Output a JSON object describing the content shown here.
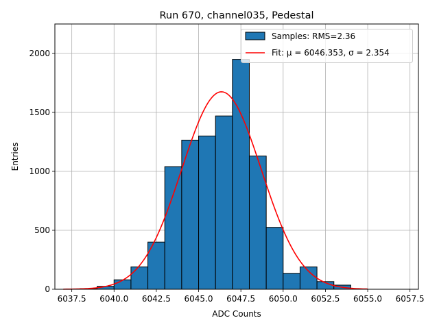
{
  "chart_data": {
    "type": "bar",
    "title": "Run 670, channel035, Pedestal",
    "xlabel": "ADC Counts",
    "ylabel": "Entries",
    "xlim": [
      6036.5,
      6058.0
    ],
    "ylim": [
      0,
      2250
    ],
    "xticks": [
      6037.5,
      6040.0,
      6042.5,
      6045.0,
      6047.5,
      6050.0,
      6052.5,
      6055.0,
      6057.5
    ],
    "xtick_labels": [
      "6037.5",
      "6040.0",
      "6042.5",
      "6045.0",
      "6047.5",
      "6050.0",
      "6052.5",
      "6055.0",
      "6057.5"
    ],
    "yticks": [
      0,
      500,
      1000,
      1500,
      2000
    ],
    "ytick_labels": [
      "0",
      "500",
      "1000",
      "1500",
      "2000"
    ],
    "grid": true,
    "legend_position": "top-right",
    "histogram": {
      "name": "Samples: RMS=2.36",
      "color": "#1f77b4",
      "edgecolor": "#000000",
      "bins": [
        {
          "x0": 6037,
          "x1": 6038,
          "count": 0
        },
        {
          "x0": 6038,
          "x1": 6039,
          "count": 5
        },
        {
          "x0": 6039,
          "x1": 6040,
          "count": 25
        },
        {
          "x0": 6040,
          "x1": 6041,
          "count": 80
        },
        {
          "x0": 6041,
          "x1": 6042,
          "count": 190
        },
        {
          "x0": 6042,
          "x1": 6043,
          "count": 400
        },
        {
          "x0": 6043,
          "x1": 6044,
          "count": 1040
        },
        {
          "x0": 6044,
          "x1": 6045,
          "count": 1265
        },
        {
          "x0": 6045,
          "x1": 6046,
          "count": 1300
        },
        {
          "x0": 6046,
          "x1": 6047,
          "count": 1470
        },
        {
          "x0": 6047,
          "x1": 6048,
          "count": 1950
        },
        {
          "x0": 6048,
          "x1": 6049,
          "count": 1130
        },
        {
          "x0": 6049,
          "x1": 6050,
          "count": 525
        },
        {
          "x0": 6050,
          "x1": 6051,
          "count": 135
        },
        {
          "x0": 6051,
          "x1": 6052,
          "count": 190
        },
        {
          "x0": 6052,
          "x1": 6053,
          "count": 65
        },
        {
          "x0": 6053,
          "x1": 6054,
          "count": 35
        },
        {
          "x0": 6054,
          "x1": 6055,
          "count": 0
        },
        {
          "x0": 6055,
          "x1": 6056,
          "count": 0
        },
        {
          "x0": 6056,
          "x1": 6057,
          "count": 0
        }
      ]
    },
    "fit": {
      "name": "Fit: μ = 6046.353, σ = 2.354",
      "color": "#ff0000",
      "type": "gaussian",
      "amplitude": 1675,
      "mu": 6046.353,
      "sigma": 2.354,
      "x_range": [
        6037.0,
        6055.0
      ]
    }
  }
}
